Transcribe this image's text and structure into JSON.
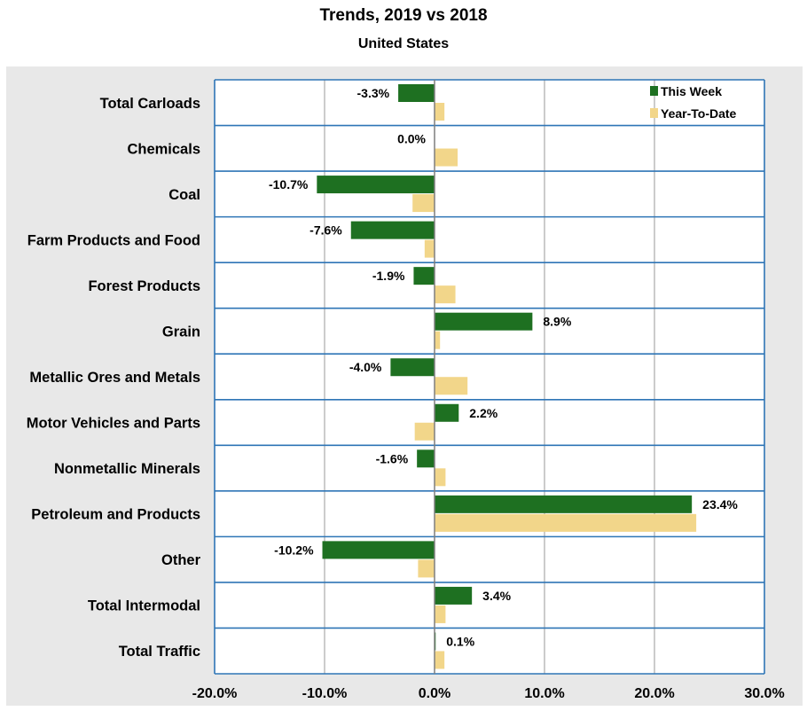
{
  "chart_data": {
    "type": "bar",
    "orientation": "horizontal",
    "title": "Trends, 2019 vs 2018",
    "subtitle": "United States",
    "categories": [
      "Total Carloads",
      "Chemicals",
      "Coal",
      "Farm Products and Food",
      "Forest Products",
      "Grain",
      "Metallic Ores and Metals",
      "Motor Vehicles and Parts",
      "Nonmetallic Minerals",
      "Petroleum and Products",
      "Other",
      "Total Intermodal",
      "Total Traffic"
    ],
    "series": [
      {
        "name": "This Week",
        "color": "#1e7021",
        "values": [
          -3.3,
          0.0,
          -10.7,
          -7.6,
          -1.9,
          8.9,
          -4.0,
          2.2,
          -1.6,
          23.4,
          -10.2,
          3.4,
          0.1
        ],
        "labels": [
          "-3.3%",
          "0.0%",
          "-10.7%",
          "-7.6%",
          "-1.9%",
          "8.9%",
          "-4.0%",
          "2.2%",
          "-1.6%",
          "23.4%",
          "-10.2%",
          "3.4%",
          "0.1%"
        ]
      },
      {
        "name": "Year-To-Date",
        "color": "#f2d68a",
        "values": [
          0.9,
          2.1,
          -2.0,
          -0.9,
          1.9,
          0.5,
          3.0,
          -1.8,
          1.0,
          23.8,
          -1.5,
          1.0,
          0.9
        ]
      }
    ],
    "xlim": [
      -20,
      30
    ],
    "xticks": [
      -20,
      -10,
      0,
      10,
      20,
      30
    ],
    "xtick_labels": [
      "-20.0%",
      "-10.0%",
      "0.0%",
      "10.0%",
      "20.0%",
      "30.0%"
    ],
    "xlabel": "",
    "ylabel": "",
    "grid": true,
    "legend_position": "top-right"
  }
}
